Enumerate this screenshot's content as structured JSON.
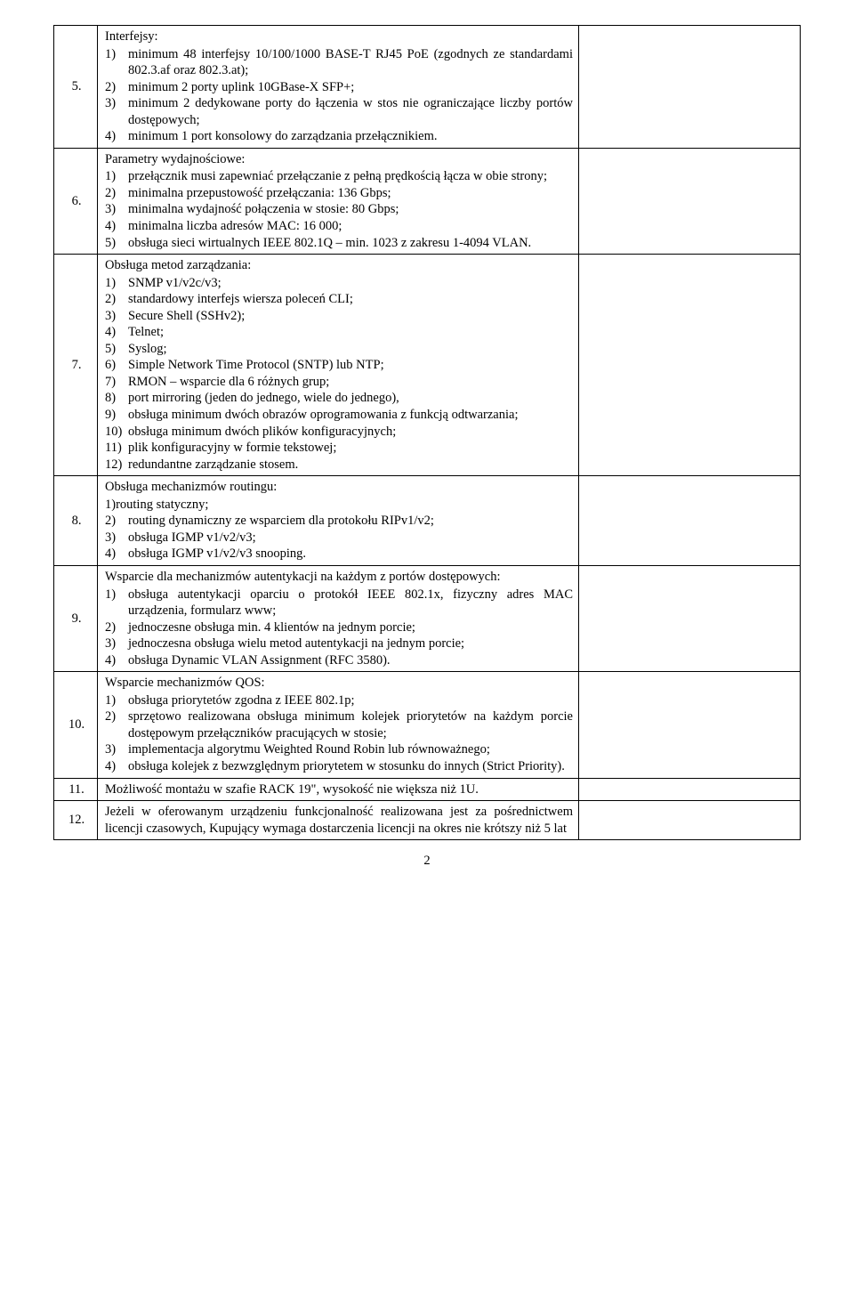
{
  "table": {
    "rows": [
      {
        "num": "5.",
        "heading": "Interfejsy:",
        "items": [
          "minimum 48 interfejsy 10/100/1000 BASE-T RJ45 PoE (zgodnych ze standardami 802.3.af oraz 802.3.at);",
          "minimum 2 porty uplink 10GBase-X SFP+;",
          "minimum 2 dedykowane porty do łączenia w stos nie ograniczające liczby portów dostępowych;",
          "minimum 1 port konsolowy do zarządzania przełącznikiem."
        ]
      },
      {
        "num": "6.",
        "heading": "Parametry wydajnościowe:",
        "items": [
          "przełącznik musi zapewniać przełączanie z pełną prędkością łącza w obie strony;",
          "minimalna przepustowość przełączania: 136 Gbps;",
          "minimalna wydajność połączenia w stosie: 80 Gbps;",
          "minimalna liczba adresów MAC: 16 000;",
          "obsługa sieci wirtualnych IEEE 802.1Q – min. 1023 z zakresu 1-4094 VLAN."
        ]
      },
      {
        "num": "7.",
        "heading": "Obsługa metod zarządzania:",
        "items": [
          "SNMP v1/v2c/v3;",
          "standardowy interfejs wiersza poleceń CLI;",
          "Secure Shell (SSHv2);",
          "Telnet;",
          "Syslog;",
          "Simple Network Time Protocol (SNTP) lub NTP;",
          "RMON – wsparcie dla 6 różnych grup;",
          "port mirroring (jeden do jednego, wiele do jednego),",
          "obsługa minimum dwóch obrazów oprogramowania z funkcją odtwarzania;",
          "obsługa minimum dwóch plików konfiguracyjnych;",
          "plik konfiguracyjny w formie tekstowej;",
          "redundantne zarządzanie stosem."
        ]
      },
      {
        "num": "8.",
        "heading": "Obsługa mechanizmów routingu:",
        "first_item_label": "1)routing statyczny;",
        "items": [
          "routing dynamiczny ze wsparciem dla protokołu RIPv1/v2;",
          "obsługa IGMP v1/v2/v3;",
          "obsługa IGMP v1/v2/v3 snooping."
        ],
        "list_start": 2
      },
      {
        "num": "9.",
        "heading": "Wsparcie dla mechanizmów autentykacji na każdym z portów dostępowych:",
        "items": [
          "obsługa autentykacji oparciu o protokół IEEE 802.1x, fizyczny adres MAC urządzenia, formularz www;",
          "jednoczesne obsługa min. 4 klientów na jednym porcie;",
          "jednoczesna obsługa wielu metod autentykacji na jednym porcie;",
          "obsługa Dynamic VLAN Assignment (RFC 3580)."
        ]
      },
      {
        "num": "10.",
        "heading": "Wsparcie mechanizmów QOS:",
        "items": [
          "obsługa priorytetów zgodna z IEEE 802.1p;",
          "sprzętowo realizowana obsługa minimum kolejek priorytetów na każdym porcie dostępowym przełączników pracujących w stosie;",
          "implementacja algorytmu Weighted Round Robin lub równoważnego;",
          "obsługa kolejek z bezwzględnym priorytetem w stosunku do innych (Strict Priority)."
        ]
      },
      {
        "num": "11.",
        "plain": "Możliwość montażu w szafie RACK 19\", wysokość nie większa niż 1U."
      },
      {
        "num": "12.",
        "plain": "Jeżeli w oferowanym urządzeniu funkcjonalność realizowana jest za pośrednictwem licencji czasowych, Kupujący wymaga dostarczenia licencji na okres nie krótszy niż 5 lat"
      }
    ]
  },
  "page_number": "2"
}
